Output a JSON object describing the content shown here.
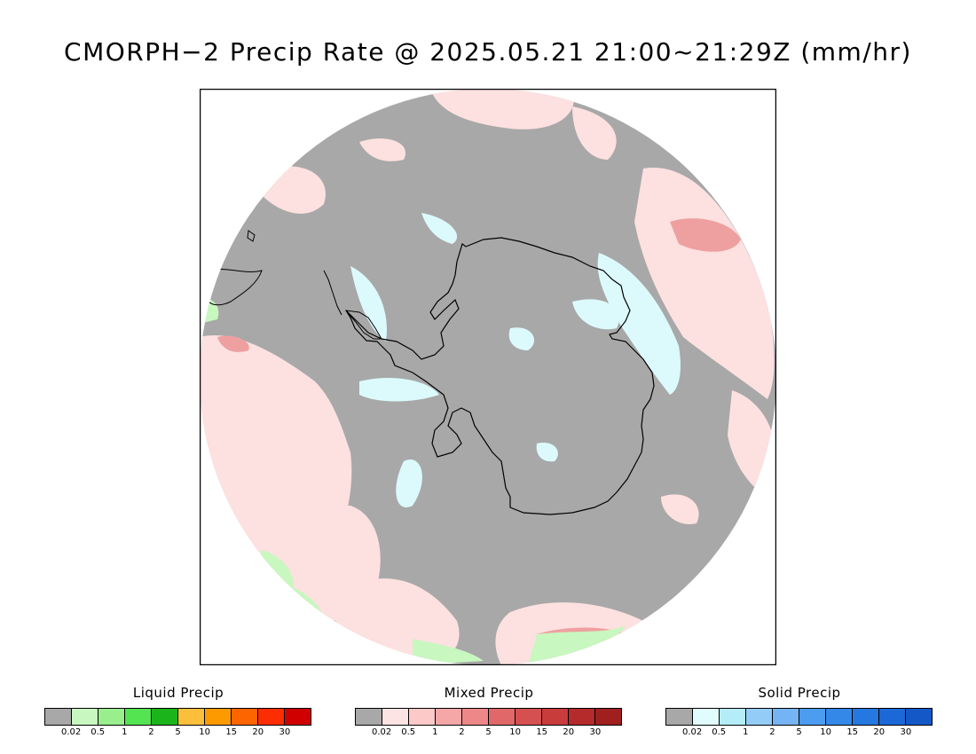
{
  "title": "CMORPH−2 Precip Rate @ 2025.05.21 21:00~21:29Z (mm/hr)",
  "map": {
    "projection": "south-polar-stereographic",
    "colors": {
      "ocean_background": "#a8a8a8",
      "coastline": "#000000",
      "frame": "#000000"
    }
  },
  "legends": [
    {
      "id": "liquid",
      "title": "Liquid Precip",
      "ticks": [
        "0.02",
        "0.5",
        "1",
        "2",
        "5",
        "10",
        "15",
        "20",
        "30"
      ],
      "colors": [
        "#a8a8a8",
        "#c8f7c0",
        "#98ef8c",
        "#54e452",
        "#1bb41b",
        "#fcbf3c",
        "#fc9a00",
        "#fc6500",
        "#fc2d00",
        "#d00000"
      ]
    },
    {
      "id": "mixed",
      "title": "Mixed Precip",
      "ticks": [
        "0.02",
        "0.5",
        "1",
        "2",
        "5",
        "10",
        "15",
        "20",
        "30"
      ],
      "colors": [
        "#a8a8a8",
        "#fde4e4",
        "#fcc8c8",
        "#f5a6a6",
        "#ee8888",
        "#e06868",
        "#d55050",
        "#c83c3c",
        "#b52a2a",
        "#a02020"
      ]
    },
    {
      "id": "solid",
      "title": "Solid Precip",
      "ticks": [
        "0.02",
        "0.5",
        "1",
        "2",
        "5",
        "10",
        "15",
        "20",
        "30"
      ],
      "colors": [
        "#a8a8a8",
        "#e0fcfc",
        "#b4ecf8",
        "#94ccf8",
        "#74b4f4",
        "#4c9cf0",
        "#3488e8",
        "#2478e0",
        "#1c68d8",
        "#1458c8"
      ]
    }
  ]
}
